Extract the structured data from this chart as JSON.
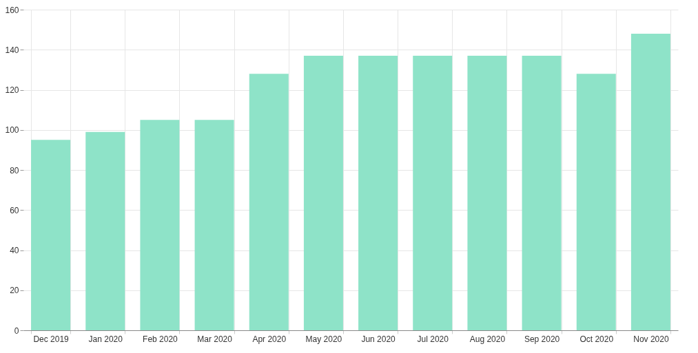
{
  "chart_data": {
    "type": "bar",
    "categories": [
      "Dec 2019",
      "Jan 2020",
      "Feb 2020",
      "Mar 2020",
      "Apr 2020",
      "May 2020",
      "Jun 2020",
      "Jul 2020",
      "Aug 2020",
      "Sep 2020",
      "Oct 2020",
      "Nov 2020"
    ],
    "values": [
      95,
      99,
      105,
      105,
      128,
      137,
      137,
      137,
      137,
      137,
      128,
      148
    ],
    "color": "#8ee3c8",
    "ylim": [
      0,
      160
    ],
    "yticks": [
      0,
      20,
      40,
      60,
      80,
      100,
      120,
      140,
      160
    ],
    "grid": true
  }
}
